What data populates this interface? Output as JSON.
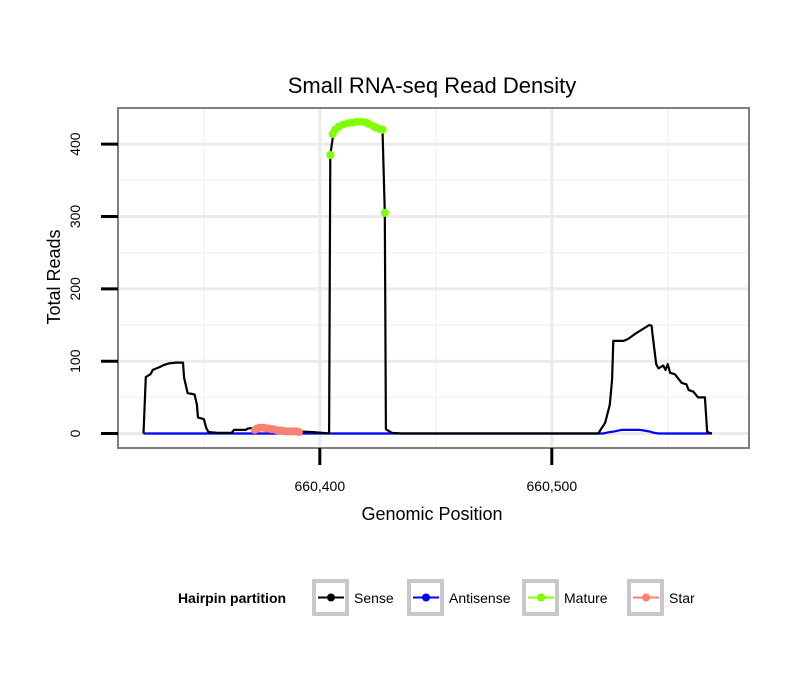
{
  "chart_data": {
    "type": "line",
    "title": "Small RNA-seq Read Density",
    "xlabel": "Genomic Position",
    "ylabel": "Total Reads",
    "xlim": [
      660313,
      660585
    ],
    "ylim": [
      -20,
      450
    ],
    "x_ticks": [
      660400,
      660500
    ],
    "x_tick_labels": [
      "660,400",
      "660,500"
    ],
    "y_ticks": [
      0,
      100,
      200,
      300,
      400
    ],
    "y_tick_labels": [
      "0",
      "100",
      "200",
      "300",
      "400"
    ],
    "grid": true,
    "legend": {
      "title": "Hairpin partition",
      "position": "bottom",
      "entries": [
        {
          "label": "Sense",
          "color": "#000000"
        },
        {
          "label": "Antisense",
          "color": "#0000ff"
        },
        {
          "label": "Mature",
          "color": "#7fff00"
        },
        {
          "label": "Star",
          "color": "#fa8072"
        }
      ]
    },
    "series": [
      {
        "name": "Sense",
        "color": "#000000",
        "style": "line",
        "points": [
          [
            660324,
            0
          ],
          [
            660325,
            78
          ],
          [
            660327,
            82
          ],
          [
            660328,
            88
          ],
          [
            660331,
            92
          ],
          [
            660333,
            95
          ],
          [
            660335,
            97
          ],
          [
            660338,
            98
          ],
          [
            660341,
            98
          ],
          [
            660341.5,
            77
          ],
          [
            660343,
            56
          ],
          [
            660346,
            54
          ],
          [
            660347,
            40
          ],
          [
            660347.5,
            22
          ],
          [
            660350,
            20
          ],
          [
            660351,
            8
          ],
          [
            660352,
            2
          ],
          [
            660356,
            1
          ],
          [
            660362,
            1
          ],
          [
            660363,
            5
          ],
          [
            660368,
            5
          ],
          [
            660369,
            7
          ],
          [
            660373,
            8
          ],
          [
            660378,
            7
          ],
          [
            660385,
            5
          ],
          [
            660390,
            3
          ],
          [
            660397,
            2
          ],
          [
            660401,
            1
          ],
          [
            660404,
            0
          ],
          [
            660404.5,
            385
          ],
          [
            660406,
            418
          ],
          [
            660409,
            425
          ],
          [
            660412,
            430
          ],
          [
            660417,
            431
          ],
          [
            660421,
            430
          ],
          [
            660424,
            426
          ],
          [
            660427,
            420
          ],
          [
            660428,
            305
          ],
          [
            660428.5,
            6
          ],
          [
            660431,
            1
          ],
          [
            660435,
            0
          ],
          [
            660520,
            0
          ],
          [
            660523,
            15
          ],
          [
            660525,
            40
          ],
          [
            660526,
            75
          ],
          [
            660526.5,
            128
          ],
          [
            660531,
            128
          ],
          [
            660533,
            131
          ],
          [
            660536,
            138
          ],
          [
            660538,
            142
          ],
          [
            660541,
            148
          ],
          [
            660542,
            150
          ],
          [
            660543,
            149
          ],
          [
            660543.5,
            135
          ],
          [
            660545,
            96
          ],
          [
            660546,
            90
          ],
          [
            660548,
            94
          ],
          [
            660549,
            88
          ],
          [
            660550,
            96
          ],
          [
            660551,
            84
          ],
          [
            660553,
            82
          ],
          [
            660554,
            78
          ],
          [
            660556,
            70
          ],
          [
            660558,
            68
          ],
          [
            660559,
            60
          ],
          [
            660561,
            58
          ],
          [
            660563,
            50
          ],
          [
            660566,
            50
          ],
          [
            660567,
            2
          ],
          [
            660569,
            0
          ]
        ]
      },
      {
        "name": "Antisense",
        "color": "#0000ff",
        "style": "line",
        "points": [
          [
            660324,
            0
          ],
          [
            660522,
            0
          ],
          [
            660525,
            2
          ],
          [
            660527,
            3
          ],
          [
            660530,
            5
          ],
          [
            660538,
            5
          ],
          [
            660540,
            4
          ],
          [
            660542,
            3
          ],
          [
            660544,
            1
          ],
          [
            660546,
            0
          ],
          [
            660569,
            0
          ]
        ]
      },
      {
        "name": "Mature",
        "color": "#7fff00",
        "style": "points",
        "points": [
          [
            660404.5,
            385
          ],
          [
            660405.5,
            414
          ],
          [
            660406.5,
            420
          ],
          [
            660408,
            424
          ],
          [
            660410,
            427
          ],
          [
            660412,
            429
          ],
          [
            660414,
            430
          ],
          [
            660416,
            431
          ],
          [
            660418,
            431
          ],
          [
            660420,
            430
          ],
          [
            660421,
            428
          ],
          [
            660423,
            425
          ],
          [
            660424,
            423
          ],
          [
            660426,
            421
          ],
          [
            660427,
            420
          ],
          [
            660428,
            305
          ]
        ]
      },
      {
        "name": "Star",
        "color": "#fa8072",
        "style": "points",
        "points": [
          [
            660372,
            5
          ],
          [
            660373,
            7
          ],
          [
            660374,
            8
          ],
          [
            660375,
            8
          ],
          [
            660376,
            8
          ],
          [
            660377,
            7
          ],
          [
            660378,
            7
          ],
          [
            660379,
            6
          ],
          [
            660380,
            6
          ],
          [
            660381,
            5
          ],
          [
            660382,
            4
          ],
          [
            660383,
            4
          ],
          [
            660384,
            4
          ],
          [
            660385,
            3
          ],
          [
            660386,
            3
          ],
          [
            660387,
            3
          ],
          [
            660388,
            3
          ],
          [
            660389,
            3
          ],
          [
            660390,
            3
          ],
          [
            660391,
            2
          ]
        ]
      }
    ]
  }
}
